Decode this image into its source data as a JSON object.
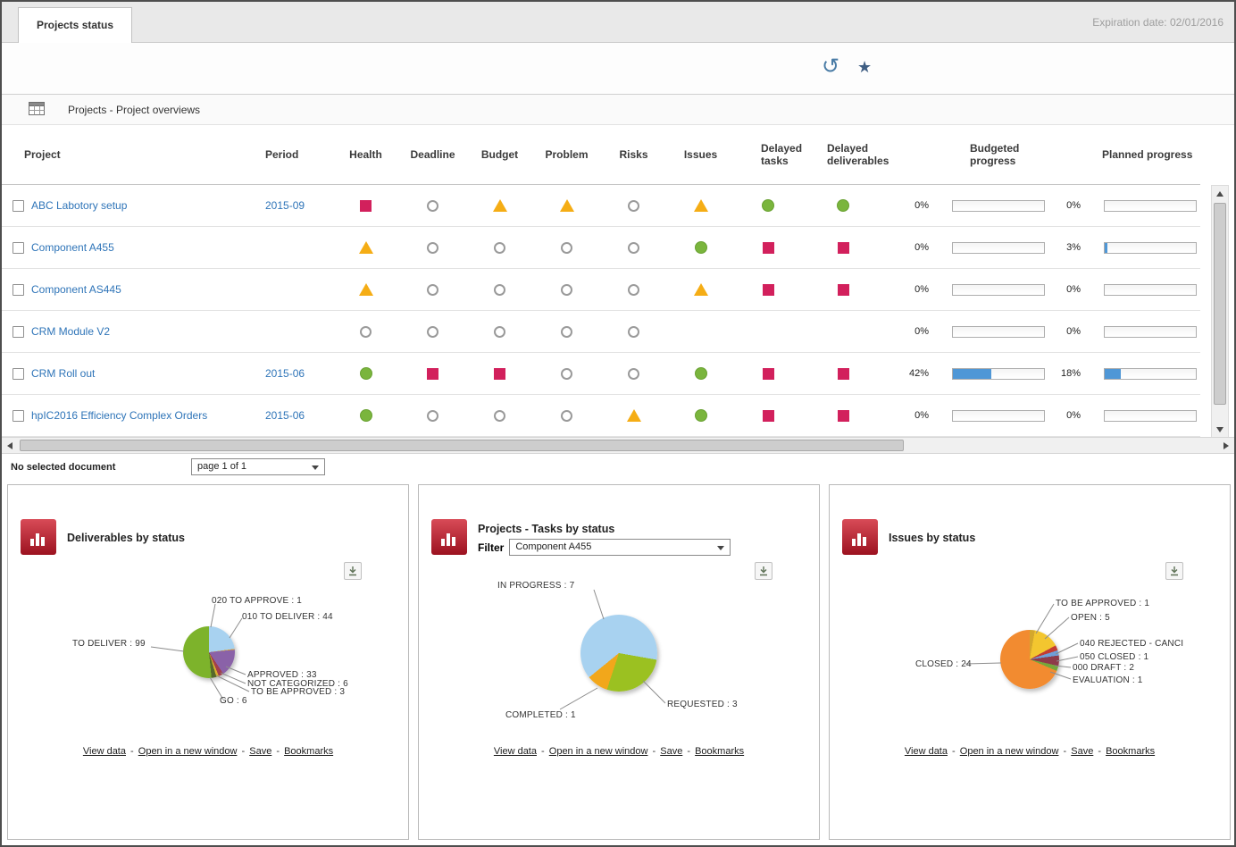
{
  "tabbar": {
    "tab_label": "Projects status",
    "expiration": "Expiration date: 02/01/2016"
  },
  "toolbar": {
    "undo_glyph": "↺",
    "favorite_glyph": "★"
  },
  "report_header": {
    "title": "Projects - Project overviews"
  },
  "table": {
    "columns": [
      "Project",
      "Period",
      "Health",
      "Deadline",
      "Budget",
      "Problem",
      "Risks",
      "Issues",
      "Delayed tasks",
      "Delayed deliverables",
      "Budgeted progress",
      "Planned progress"
    ],
    "rows": [
      {
        "project": "ABC Labotory setup",
        "period": "2015-09",
        "health": "red-square",
        "deadline": "empty-circle",
        "budget": "yellow-triangle",
        "problem": "yellow-triangle",
        "risks": "empty-circle",
        "issues": "yellow-triangle",
        "delayed_tasks": "green-circle",
        "delayed_deliverables": "green-circle",
        "budgeted_pct": "0%",
        "budgeted_val": 0,
        "planned_pct": "0%",
        "planned_val": 0
      },
      {
        "project": "Component A455",
        "period": "",
        "health": "yellow-triangle",
        "deadline": "empty-circle",
        "budget": "empty-circle",
        "problem": "empty-circle",
        "risks": "empty-circle",
        "issues": "green-circle",
        "delayed_tasks": "red-square",
        "delayed_deliverables": "red-square",
        "budgeted_pct": "0%",
        "budgeted_val": 0,
        "planned_pct": "3%",
        "planned_val": 3
      },
      {
        "project": "Component AS445",
        "period": "",
        "health": "yellow-triangle",
        "deadline": "empty-circle",
        "budget": "empty-circle",
        "problem": "empty-circle",
        "risks": "empty-circle",
        "issues": "yellow-triangle",
        "delayed_tasks": "red-square",
        "delayed_deliverables": "red-square",
        "budgeted_pct": "0%",
        "budgeted_val": 0,
        "planned_pct": "0%",
        "planned_val": 0
      },
      {
        "project": "CRM Module V2",
        "period": "",
        "health": "empty-circle",
        "deadline": "empty-circle",
        "budget": "empty-circle",
        "problem": "empty-circle",
        "risks": "empty-circle",
        "issues": "none",
        "delayed_tasks": "none",
        "delayed_deliverables": "none",
        "budgeted_pct": "0%",
        "budgeted_val": 0,
        "planned_pct": "0%",
        "planned_val": 0
      },
      {
        "project": "CRM Roll out",
        "period": "2015-06",
        "health": "green-circle",
        "deadline": "red-square",
        "budget": "red-square",
        "problem": "empty-circle",
        "risks": "empty-circle",
        "issues": "green-circle",
        "delayed_tasks": "red-square",
        "delayed_deliverables": "red-square",
        "budgeted_pct": "42%",
        "budgeted_val": 42,
        "planned_pct": "18%",
        "planned_val": 18
      },
      {
        "project": "hpIC2016 Efficiency Complex Orders",
        "period": "2015-06",
        "health": "green-circle",
        "deadline": "empty-circle",
        "budget": "empty-circle",
        "problem": "empty-circle",
        "risks": "yellow-triangle",
        "issues": "green-circle",
        "delayed_tasks": "red-square",
        "delayed_deliverables": "red-square",
        "budgeted_pct": "0%",
        "budgeted_val": 0,
        "planned_pct": "0%",
        "planned_val": 0
      }
    ]
  },
  "statusbar": {
    "message": "No selected document",
    "page_value": "page 1 of 1"
  },
  "panels": [
    {
      "title": "Deliverables by status",
      "labels": [
        "020 TO APPROVE : 1",
        "010 TO DELIVER : 44",
        "TO DELIVER : 99",
        "APPROVED : 33",
        "NOT CATEGORIZED : 6",
        "TO BE APPROVED : 3",
        "GO : 6"
      ],
      "links": [
        "View data",
        "Open in a new window",
        "Save",
        "Bookmarks"
      ]
    },
    {
      "title": "Projects - Tasks by status",
      "filter_label": "Filter",
      "filter_value": "Component A455",
      "labels": [
        "IN PROGRESS : 7",
        "COMPLETED : 1",
        "REQUESTED : 3"
      ],
      "links": [
        "View data",
        "Open in a new window",
        "Save",
        "Bookmarks"
      ]
    },
    {
      "title": "Issues by status",
      "labels": [
        "TO BE APPROVED : 1",
        "OPEN : 5",
        "040 REJECTED - CANCI",
        "050 CLOSED : 1",
        "000 DRAFT : 2",
        "EVALUATION : 1",
        "CLOSED : 24"
      ],
      "links": [
        "View data",
        "Open in a new window",
        "Save",
        "Bookmarks"
      ]
    }
  ],
  "chart_data": [
    {
      "type": "pie",
      "title": "Deliverables by status",
      "start_angle": 0,
      "slices": [
        {
          "label": "010 TO DELIVER",
          "value": 44,
          "color": "#a8d2f0"
        },
        {
          "label": "020 TO APPROVE",
          "value": 1,
          "color": "#e0a32e"
        },
        {
          "label": "APPROVED",
          "value": 33,
          "color": "#8a62a8"
        },
        {
          "label": "NOT CATEGORIZED",
          "value": 6,
          "color": "#a23f4b"
        },
        {
          "label": "TO BE APPROVED",
          "value": 3,
          "color": "#d8b02e"
        },
        {
          "label": "GO",
          "value": 6,
          "color": "#55682c"
        },
        {
          "label": "TO DELIVER",
          "value": 99,
          "color": "#7db32b"
        }
      ]
    },
    {
      "type": "pie",
      "title": "Projects - Tasks by status",
      "filter": "Component A455",
      "start_angle": 100,
      "slices": [
        {
          "label": "REQUESTED",
          "value": 3,
          "color": "#9bc121"
        },
        {
          "label": "COMPLETED",
          "value": 1,
          "color": "#f2a71b"
        },
        {
          "label": "IN PROGRESS",
          "value": 7,
          "color": "#a8d2f0"
        }
      ]
    },
    {
      "type": "pie",
      "title": "Issues by status",
      "start_angle": 0,
      "slices": [
        {
          "label": "TO BE APPROVED",
          "value": 1,
          "color": "#d4a72c"
        },
        {
          "label": "OPEN",
          "value": 5,
          "color": "#f3c62f"
        },
        {
          "label": "040 REJECTED - CANCI",
          "value": 1,
          "color": "#c23b34"
        },
        {
          "label": "050 CLOSED",
          "value": 1,
          "color": "#6f9fd8"
        },
        {
          "label": "000 DRAFT",
          "value": 2,
          "color": "#8e3b4a"
        },
        {
          "label": "EVALUATION",
          "value": 1,
          "color": "#76a73a"
        },
        {
          "label": "CLOSED",
          "value": 24,
          "color": "#f28b30"
        }
      ]
    }
  ],
  "colors": {
    "status_red": "#d2205c",
    "status_yellow": "#f5ad15",
    "status_green": "#7ab53d",
    "progress_fill": "#4f97d6",
    "link_blue": "#2e74b8",
    "panel_icon_red": "#9c1220"
  }
}
